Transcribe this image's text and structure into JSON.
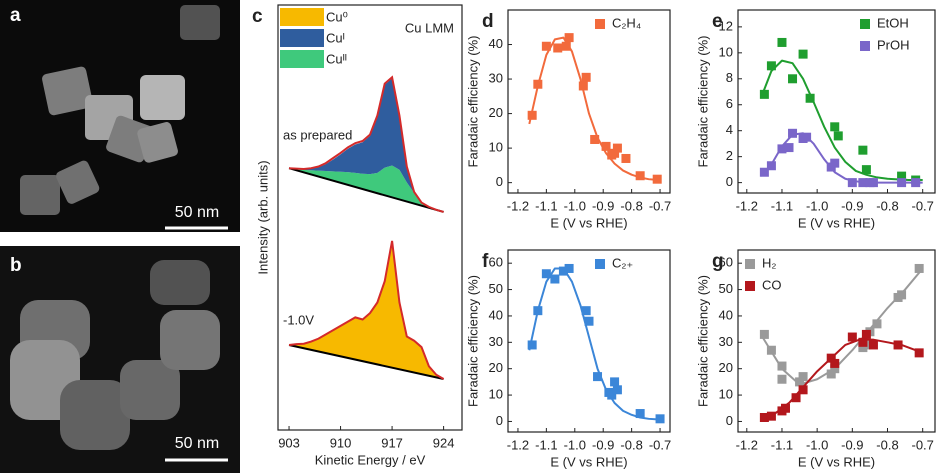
{
  "images": [
    {
      "label": "a",
      "scale_bar": "50 nm"
    },
    {
      "label": "b",
      "scale_bar": "50 nm"
    }
  ],
  "chart_data": [
    {
      "type": "spectra",
      "label": "c",
      "title": "Cu LMM",
      "xlabel": "Kinetic Energy / eV",
      "ylabel": "Intensity (arb. units)",
      "xlim": [
        901.5,
        926.5
      ],
      "xticks": [
        903,
        910,
        917,
        924
      ],
      "ylim": [
        0,
        100
      ],
      "legend": [
        {
          "name": "Cu⁰",
          "color": "#f7b900"
        },
        {
          "name": "Cuᴵ",
          "color": "#2f5d9e"
        },
        {
          "name": "Cuᴵᴵ",
          "color": "#3fc97c"
        }
      ],
      "x": [
        903,
        904,
        905,
        906,
        907,
        908,
        909,
        910,
        911,
        912,
        913,
        914,
        915,
        916,
        917,
        918,
        919,
        920,
        921,
        922,
        923,
        924
      ],
      "spectra": [
        {
          "label": "as prepared",
          "line_color": "#d42a2a",
          "baseline": [
            61.6,
            51.3
          ],
          "values": [
            61.6,
            61.5,
            61.4,
            61.6,
            62,
            62.8,
            64,
            65.2,
            66.5,
            67.5,
            68,
            69.5,
            74,
            81.5,
            83,
            74,
            62,
            56,
            53.5,
            52.5,
            51.8,
            51.3
          ],
          "components": [
            {
              "legend": 2,
              "values": [
                0,
                0.3,
                0.6,
                1,
                1.4,
                1.8,
                2.2,
                2.6,
                3,
                3.3,
                3.6,
                4,
                4.8,
                6.5,
                7.5,
                7,
                4.5,
                2.5,
                0.6,
                0.2,
                0,
                0
              ]
            },
            {
              "legend": 1,
              "values": [
                0,
                0.1,
                0.2,
                0.4,
                0.8,
                1.6,
                2.8,
                4.1,
                5.5,
                6.7,
                7.4,
                9,
                13.2,
                19.5,
                20.5,
                12.5,
                3.5,
                0.2,
                0,
                0,
                0,
                0
              ]
            }
          ]
        },
        {
          "label": "-1.0V",
          "line_color": "#d42a2a",
          "baseline": [
            20,
            12
          ],
          "values": [
            20,
            20.2,
            20.3,
            20.8,
            21.5,
            22.5,
            23.5,
            24.5,
            25.5,
            26.5,
            26,
            27.5,
            30,
            35,
            44.5,
            30,
            22,
            21,
            19.5,
            15,
            13,
            12
          ],
          "components": [
            {
              "legend": 0,
              "values": [
                0,
                0.6,
                1.1,
                1.9,
                3,
                4.4,
                5.8,
                7.2,
                8.5,
                9.9,
                9.8,
                11.7,
                14.6,
                20,
                29.8,
                15.7,
                8.1,
                7.5,
                6.3,
                2.2,
                0.6,
                0
              ]
            }
          ]
        }
      ]
    },
    {
      "type": "scatter",
      "label": "d",
      "xlabel": "E (V vs RHE)",
      "ylabel": "Faradaic efficiency (%)",
      "legend_corner": "upper-right",
      "xlim": [
        -1.235,
        -0.665
      ],
      "xticks": [
        -1.2,
        -1.1,
        {
          "value": -1,
          "label": "-1.0"
        },
        -0.9,
        -0.8,
        -0.7
      ],
      "ylim": [
        -3,
        50
      ],
      "yticks": [
        0,
        10,
        20,
        30,
        40
      ],
      "series": [
        {
          "name": "C₂H₄",
          "color": "#f26a3c",
          "x": [
            -1.15,
            -1.13,
            -1.1,
            -1.06,
            -1.03,
            -1.02,
            -0.97,
            -0.96,
            -0.93,
            -0.89,
            -0.87,
            -0.86,
            -0.85,
            -0.82,
            -0.77,
            -0.71
          ],
          "values": [
            19.5,
            28.5,
            39.5,
            39,
            39.5,
            42,
            28,
            30.5,
            12.5,
            10.5,
            8,
            8.5,
            10,
            7,
            2,
            1
          ],
          "fit_x": [
            -1.16,
            -1.13,
            -1.1,
            -1.07,
            -1.04,
            -1.01,
            -0.98,
            -0.95,
            -0.92,
            -0.89,
            -0.86,
            -0.83,
            -0.8,
            -0.77,
            -0.74,
            -0.71
          ],
          "fit_values": [
            17,
            28,
            37,
            41.5,
            42,
            38,
            30,
            20,
            13,
            8.5,
            5.5,
            3.5,
            2.3,
            1.5,
            1,
            0.8
          ]
        }
      ]
    },
    {
      "type": "scatter",
      "label": "e",
      "xlabel": "E (V vs RHE)",
      "ylabel": "Faradaic efficiency (%)",
      "legend_corner": "upper-right",
      "xlim": [
        -1.225,
        -0.665
      ],
      "xticks": [
        -1.2,
        -1.1,
        {
          "value": -1,
          "label": "-1.0"
        },
        -0.9,
        -0.8,
        -0.7
      ],
      "ylim": [
        -0.8,
        13.3
      ],
      "yticks": [
        0,
        2,
        4,
        6,
        8,
        10,
        12
      ],
      "series": [
        {
          "name": "EtOH",
          "color": "#1f9e2f",
          "x": [
            -1.15,
            -1.13,
            -1.1,
            -1.07,
            -1.04,
            -1.02,
            -0.95,
            -0.94,
            -0.87,
            -0.86,
            -0.76,
            -0.72
          ],
          "values": [
            6.8,
            9,
            10.8,
            8,
            9.9,
            6.5,
            4.3,
            3.6,
            2.5,
            1,
            0.5,
            0.2
          ],
          "fit_x": [
            -1.16,
            -1.13,
            -1.1,
            -1.07,
            -1.04,
            -1.01,
            -0.98,
            -0.95,
            -0.92,
            -0.89,
            -0.86,
            -0.83,
            -0.8,
            -0.74,
            -0.7
          ],
          "fit_values": [
            6.5,
            8.6,
            9.4,
            9.2,
            8,
            6.2,
            4.3,
            2.7,
            1.6,
            0.9,
            0.6,
            0.4,
            0.3,
            0.2,
            0.2
          ]
        },
        {
          "name": "PrOH",
          "color": "#7a66c9",
          "x": [
            -1.15,
            -1.13,
            -1.1,
            -1.08,
            -1.07,
            -1.04,
            -1.03,
            -0.96,
            -0.95,
            -0.9,
            -0.87,
            -0.85,
            -0.84,
            -0.76,
            -0.72
          ],
          "values": [
            0.8,
            1.3,
            2.6,
            2.7,
            3.8,
            3.4,
            3.5,
            1.2,
            1.5,
            0,
            0,
            0,
            0,
            0,
            0
          ],
          "fit_x": [
            -1.16,
            -1.13,
            -1.1,
            -1.07,
            -1.04,
            -1.01,
            -0.98,
            -0.95,
            -0.92,
            -0.89,
            -0.86,
            -0.7
          ],
          "fit_values": [
            0.5,
            1.4,
            2.8,
            3.7,
            3.8,
            3,
            1.8,
            0.8,
            0.3,
            0.1,
            0,
            0
          ]
        }
      ]
    },
    {
      "type": "scatter",
      "label": "f",
      "xlabel": "E (V vs RHE)",
      "ylabel": "Faradaic efficiency (%)",
      "legend_corner": "upper-right",
      "xlim": [
        -1.235,
        -0.665
      ],
      "xticks": [
        -1.2,
        -1.1,
        {
          "value": -1,
          "label": "-1.0"
        },
        -0.9,
        -0.8,
        -0.7
      ],
      "ylim": [
        -4,
        65
      ],
      "yticks": [
        0,
        10,
        20,
        30,
        40,
        50,
        60
      ],
      "series": [
        {
          "name": "C₂₊",
          "color": "#3b86d8",
          "x": [
            -1.15,
            -1.13,
            -1.1,
            -1.07,
            -1.04,
            -1.02,
            -0.96,
            -0.95,
            -0.92,
            -0.88,
            -0.87,
            -0.86,
            -0.85,
            -0.77,
            -0.7
          ],
          "values": [
            29,
            42,
            56,
            54,
            57,
            58,
            42,
            38,
            17,
            11,
            10,
            15,
            12,
            3,
            1
          ],
          "fit_x": [
            -1.16,
            -1.13,
            -1.1,
            -1.07,
            -1.04,
            -1.01,
            -0.98,
            -0.95,
            -0.92,
            -0.89,
            -0.86,
            -0.83,
            -0.8,
            -0.77,
            -0.74,
            -0.71
          ],
          "fit_values": [
            27,
            42,
            53,
            58,
            58,
            53,
            44,
            32,
            20,
            12,
            7,
            4,
            2.5,
            1.5,
            1,
            0.8
          ]
        }
      ]
    },
    {
      "type": "scatter",
      "label": "g",
      "xlabel": "E (V vs RHE)",
      "ylabel": "Faradaic efficiency (%)",
      "legend_corner": "upper-left",
      "xlim": [
        -1.225,
        -0.665
      ],
      "xticks": [
        -1.2,
        -1.1,
        {
          "value": -1,
          "label": "-1.0"
        },
        -0.9,
        -0.8,
        -0.7
      ],
      "ylim": [
        -4,
        65
      ],
      "yticks": [
        0,
        10,
        20,
        30,
        40,
        50,
        60
      ],
      "series": [
        {
          "name": "H₂",
          "color": "#9a9a9a",
          "x": [
            -1.15,
            -1.13,
            -1.1,
            -1.1,
            -1.05,
            -1.04,
            -0.96,
            -0.95,
            -0.87,
            -0.86,
            -0.85,
            -0.83,
            -0.77,
            -0.76,
            -0.71
          ],
          "values": [
            33,
            27,
            21,
            16,
            15,
            17,
            18,
            20,
            28,
            29,
            34,
            37,
            47,
            48,
            58
          ],
          "fit_x": [
            -1.16,
            -1.1,
            -1.05,
            -1,
            -0.95,
            -0.9,
            -0.85,
            -0.8,
            -0.75,
            -0.7
          ],
          "fit_values": [
            33,
            20,
            14,
            16,
            20,
            27,
            35,
            43,
            50,
            58
          ]
        },
        {
          "name": "CO",
          "color": "#b3171c",
          "x": [
            -1.15,
            -1.13,
            -1.1,
            -1.09,
            -1.06,
            -1.04,
            -0.96,
            -0.95,
            -0.9,
            -0.87,
            -0.86,
            -0.84,
            -0.77,
            -0.71
          ],
          "values": [
            1.5,
            2,
            4,
            5,
            9,
            12,
            24,
            22,
            32,
            30,
            33,
            29,
            29,
            26
          ],
          "fit_x": [
            -1.16,
            -1.12,
            -1.08,
            -1.04,
            -1,
            -0.96,
            -0.92,
            -0.88,
            -0.84,
            -0.8,
            -0.76,
            -0.72,
            -0.7
          ],
          "fit_values": [
            1,
            3,
            7,
            13,
            19,
            24,
            29,
            31,
            31,
            30,
            29,
            27,
            26
          ]
        }
      ]
    }
  ]
}
